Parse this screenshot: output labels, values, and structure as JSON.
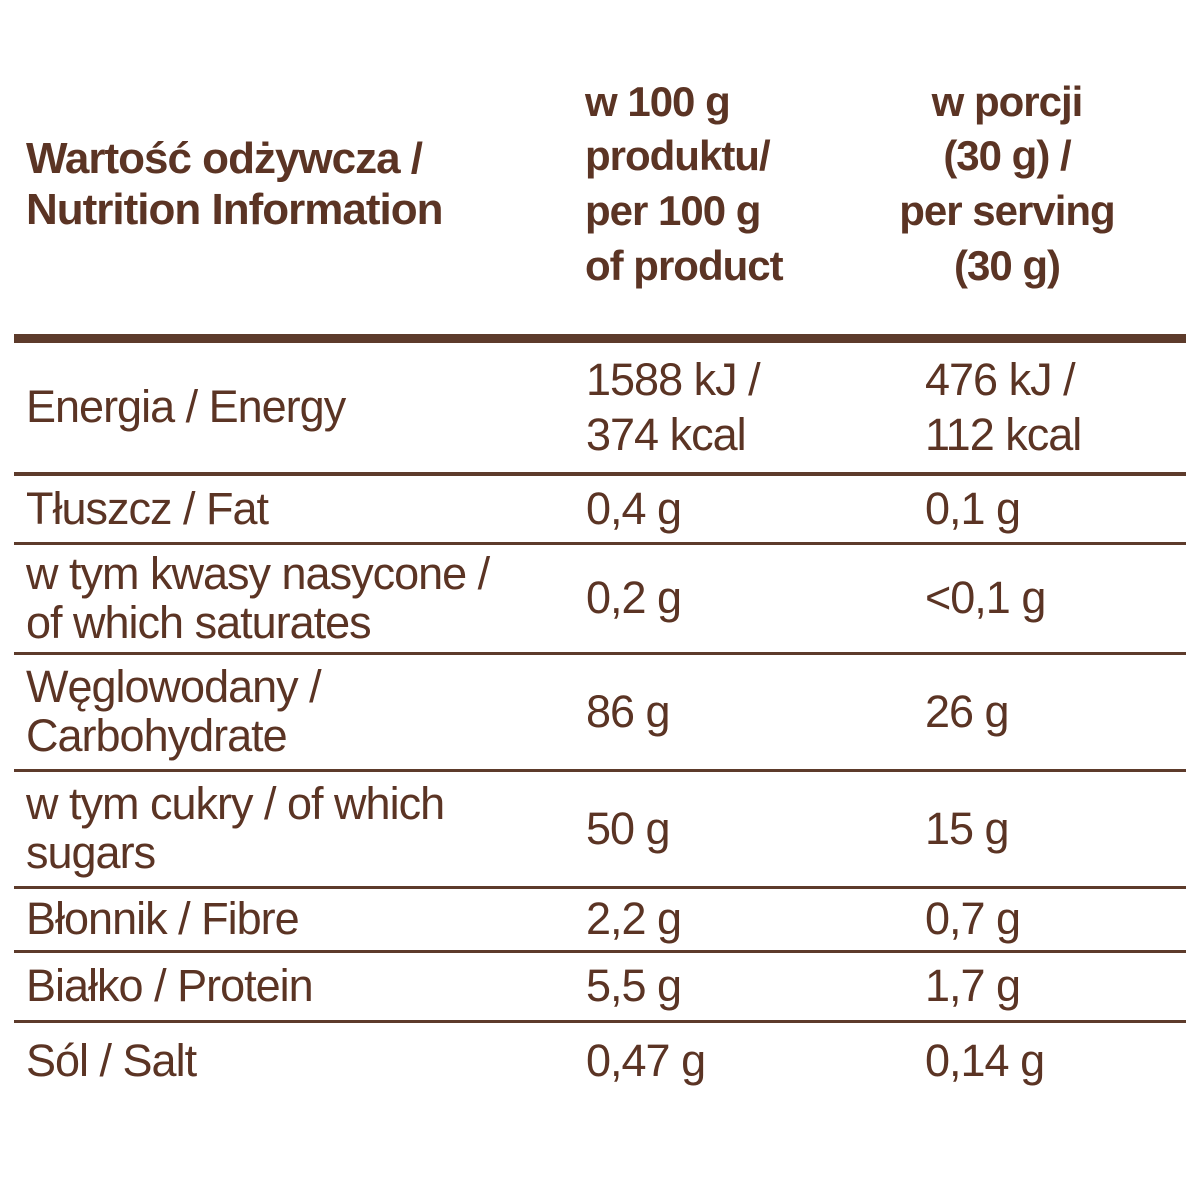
{
  "colors": {
    "text_brown": "#5b3424",
    "rule_brown": "#5d3b2b",
    "background": "#ffffff"
  },
  "table": {
    "header": {
      "title": "Wartość odżywcza /\nNutrition Information",
      "per_100g": "w 100 g\nproduktu/\nper 100 g\nof product",
      "per_serving": "w porcji\n(30 g) /\nper serving\n(30 g)"
    },
    "rows": [
      {
        "label": "Energia / Energy",
        "per100": "1588 kJ /\n374 kcal",
        "serving": "476 kJ /\n112 kcal"
      },
      {
        "label": "Tłuszcz / Fat",
        "per100": "0,4 g",
        "serving": "0,1 g"
      },
      {
        "label": "w tym kwasy nasycone /\nof which saturates",
        "per100": "0,2 g",
        "serving": "<0,1 g"
      },
      {
        "label": "Węglowodany /\nCarbohydrate",
        "per100": "86 g",
        "serving": "26 g"
      },
      {
        "label": "w tym cukry / of which\nsugars",
        "per100": "50 g",
        "serving": "15 g"
      },
      {
        "label": "Błonnik / Fibre",
        "per100": "2,2 g",
        "serving": "0,7 g"
      },
      {
        "label": "Białko / Protein",
        "per100": "5,5 g",
        "serving": "1,7 g"
      },
      {
        "label": "Sól / Salt",
        "per100": "0,47 g",
        "serving": "0,14 g"
      }
    ]
  }
}
